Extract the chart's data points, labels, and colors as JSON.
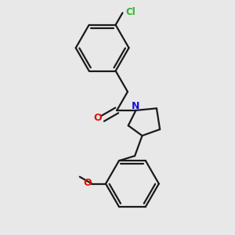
{
  "bg": "#e8e8e8",
  "bond_color": "#1a1a1a",
  "cl_color": "#22bb22",
  "o_color": "#dd1100",
  "n_color": "#1111dd",
  "lw": 1.6,
  "figsize": [
    3.0,
    3.0
  ],
  "dpi": 100,
  "xlim": [
    0.08,
    0.92
  ],
  "ylim": [
    0.04,
    0.96
  ]
}
